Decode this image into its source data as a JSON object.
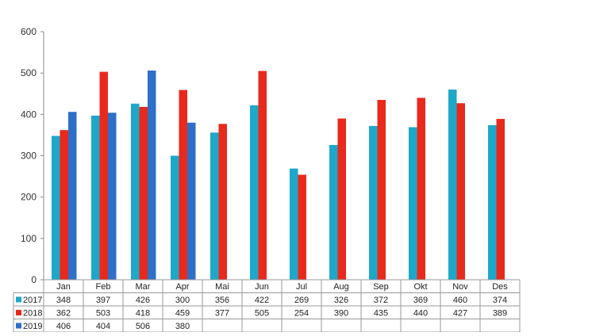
{
  "chart_data": {
    "type": "bar",
    "title": "",
    "xlabel": "",
    "ylabel": "",
    "ylim": [
      0,
      600
    ],
    "yticks": [
      0,
      100,
      200,
      300,
      400,
      500,
      600
    ],
    "grid": false,
    "legend": "data table (left of rows)",
    "categories": [
      "Jan",
      "Feb",
      "Mar",
      "Apr",
      "Mai",
      "Jun",
      "Jul",
      "Aug",
      "Sep",
      "Okt",
      "Nov",
      "Des"
    ],
    "series": [
      {
        "name": "2017",
        "color": "#1fa7c9",
        "values": [
          348,
          397,
          426,
          300,
          356,
          422,
          269,
          326,
          372,
          369,
          460,
          374
        ]
      },
      {
        "name": "2018",
        "color": "#e8291c",
        "values": [
          362,
          503,
          418,
          459,
          377,
          505,
          254,
          390,
          435,
          440,
          427,
          389
        ]
      },
      {
        "name": "2019",
        "color": "#2e6fc8",
        "values": [
          406,
          404,
          506,
          380,
          null,
          null,
          null,
          null,
          null,
          null,
          null,
          null
        ]
      }
    ]
  }
}
